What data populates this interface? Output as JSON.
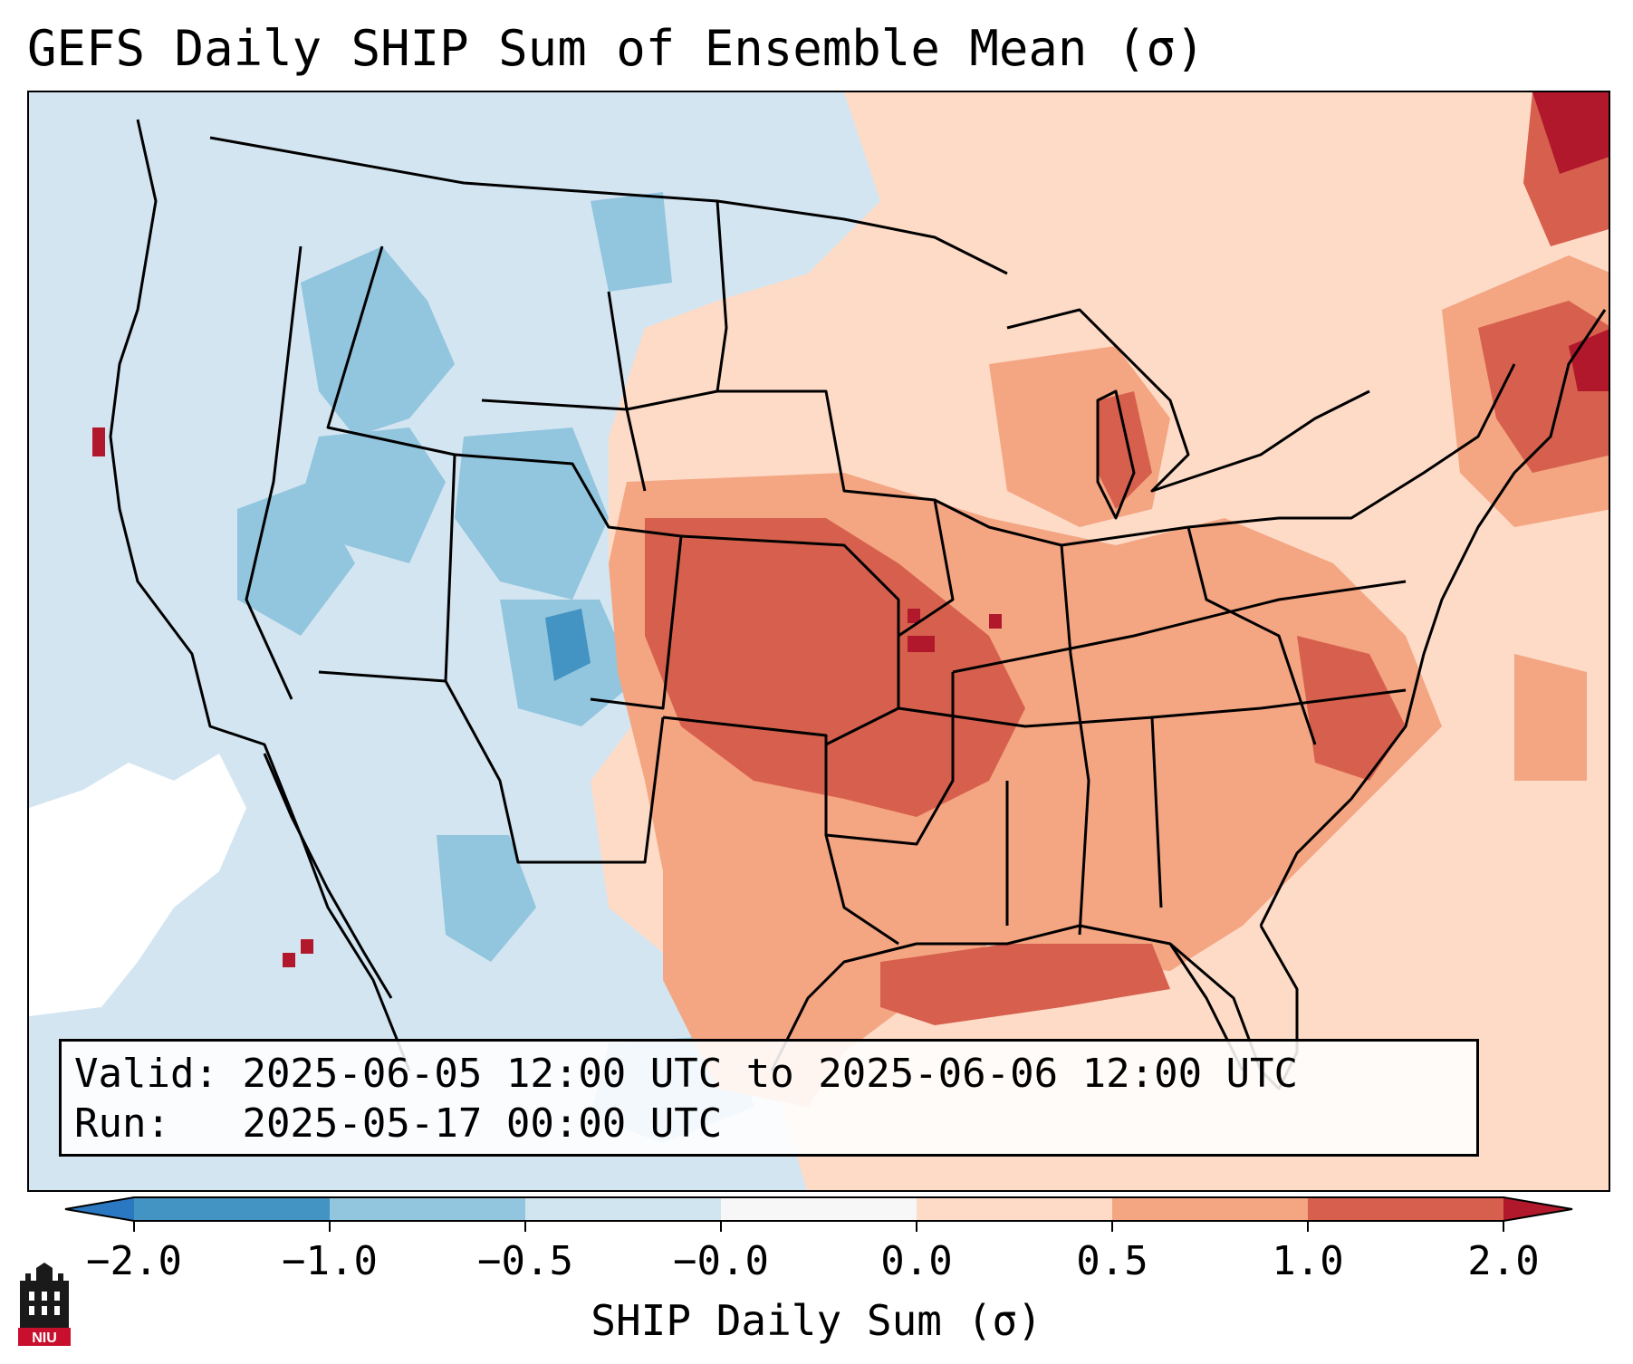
{
  "title": "GEFS Daily SHIP Sum of Ensemble Mean (σ)",
  "info": {
    "valid_label": "Valid:",
    "valid_range": "2025-06-05 12:00 UTC to 2025-06-06 12:00 UTC",
    "run_label": "Run:",
    "run_time": "2025-05-17 00:00 UTC"
  },
  "colorbar": {
    "label": "SHIP Daily Sum (σ)",
    "ticks": [
      "−2.0",
      "−1.0",
      "−0.5",
      "−0.0",
      "0.0",
      "0.5",
      "1.0",
      "2.0"
    ],
    "bins": [
      {
        "range": "< -2.0",
        "color": "#2b78c2"
      },
      {
        "range": "-2.0 to -1.0",
        "color": "#4393c3"
      },
      {
        "range": "-1.0 to -0.5",
        "color": "#92c5de"
      },
      {
        "range": "-0.5 to -0.0",
        "color": "#d1e5f0"
      },
      {
        "range": "-0.0 to 0.0",
        "color": "#f7f7f7"
      },
      {
        "range": "0.0 to 0.5",
        "color": "#fddbc7"
      },
      {
        "range": "0.5 to 1.0",
        "color": "#f4a582"
      },
      {
        "range": "1.0 to 2.0",
        "color": "#d6604d"
      },
      {
        "range": "> 2.0",
        "color": "#b2182b"
      }
    ]
  },
  "map": {
    "region": "Continental United States",
    "field": "GEFS SHIP daily sum, ensemble mean",
    "colors": {
      "ocean_neutral": "#d3e5f1",
      "strong_negative": "#4393c3",
      "moderate_negative": "#92c5de",
      "weak_positive": "#fddbc7",
      "moderate_positive": "#f4a582",
      "strong_positive": "#d6604d",
      "extreme_positive": "#b2182b",
      "near_zero": "#ffffff"
    }
  },
  "logo": {
    "text": "NIU",
    "icon": "university-tower-icon"
  }
}
